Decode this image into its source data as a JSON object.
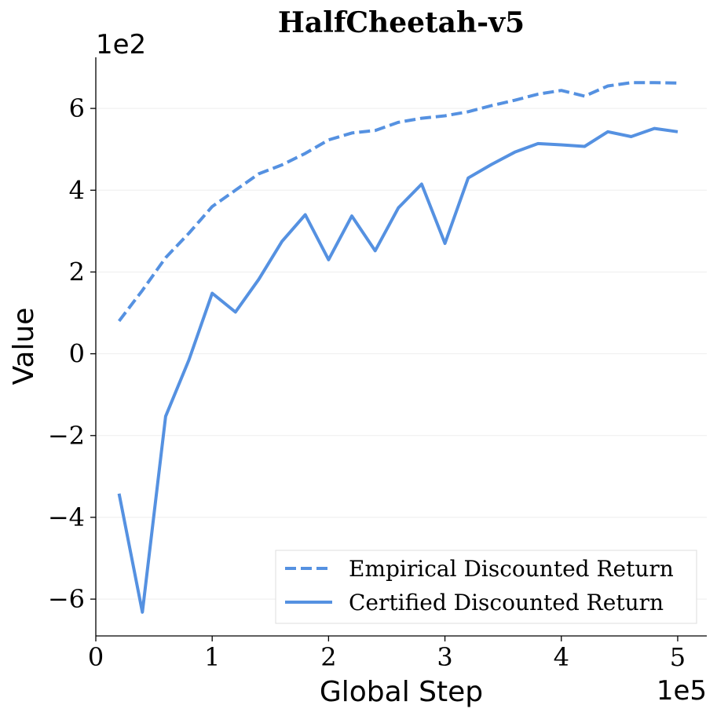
{
  "chart_data": {
    "type": "line",
    "title": "HalfCheetah-v5",
    "xlabel": "Global Step",
    "ylabel": "Value",
    "x_offset_label": "1e5",
    "y_offset_label": "1e2",
    "xlim": [
      0,
      5.25
    ],
    "ylim": [
      -6.9,
      7.25
    ],
    "x_ticks": [
      0,
      1,
      2,
      3,
      4,
      5
    ],
    "x_tick_labels": [
      "0",
      "1",
      "2",
      "3",
      "4",
      "5"
    ],
    "y_ticks": [
      -6,
      -4,
      -2,
      0,
      2,
      4,
      6
    ],
    "y_tick_labels": [
      "−6",
      "−4",
      "−2",
      "0",
      "2",
      "4",
      "6"
    ],
    "grid": "horizontal",
    "legend_position": "lower-right",
    "color": "#5591E1",
    "x": [
      0.2,
      0.4,
      0.6,
      0.8,
      1.0,
      1.2,
      1.4,
      1.6,
      1.8,
      2.0,
      2.2,
      2.4,
      2.6,
      2.8,
      3.0,
      3.2,
      3.4,
      3.6,
      3.8,
      4.0,
      4.2,
      4.4,
      4.6,
      4.8,
      5.0
    ],
    "series": [
      {
        "name": "Empirical Discounted Return",
        "style": "dashed",
        "values": [
          0.8,
          1.55,
          2.35,
          2.95,
          3.6,
          4.0,
          4.4,
          4.62,
          4.9,
          5.23,
          5.4,
          5.46,
          5.66,
          5.76,
          5.82,
          5.92,
          6.07,
          6.2,
          6.35,
          6.44,
          6.3,
          6.55,
          6.63,
          6.63,
          6.62
        ]
      },
      {
        "name": "Certified Discounted Return",
        "style": "solid",
        "values": [
          -3.42,
          -6.32,
          -1.53,
          -0.15,
          1.48,
          1.02,
          1.82,
          2.75,
          3.4,
          2.3,
          3.37,
          2.52,
          3.57,
          4.15,
          2.7,
          4.3,
          4.63,
          4.93,
          5.14,
          5.11,
          5.07,
          5.43,
          5.31,
          5.51,
          5.43
        ]
      }
    ]
  }
}
